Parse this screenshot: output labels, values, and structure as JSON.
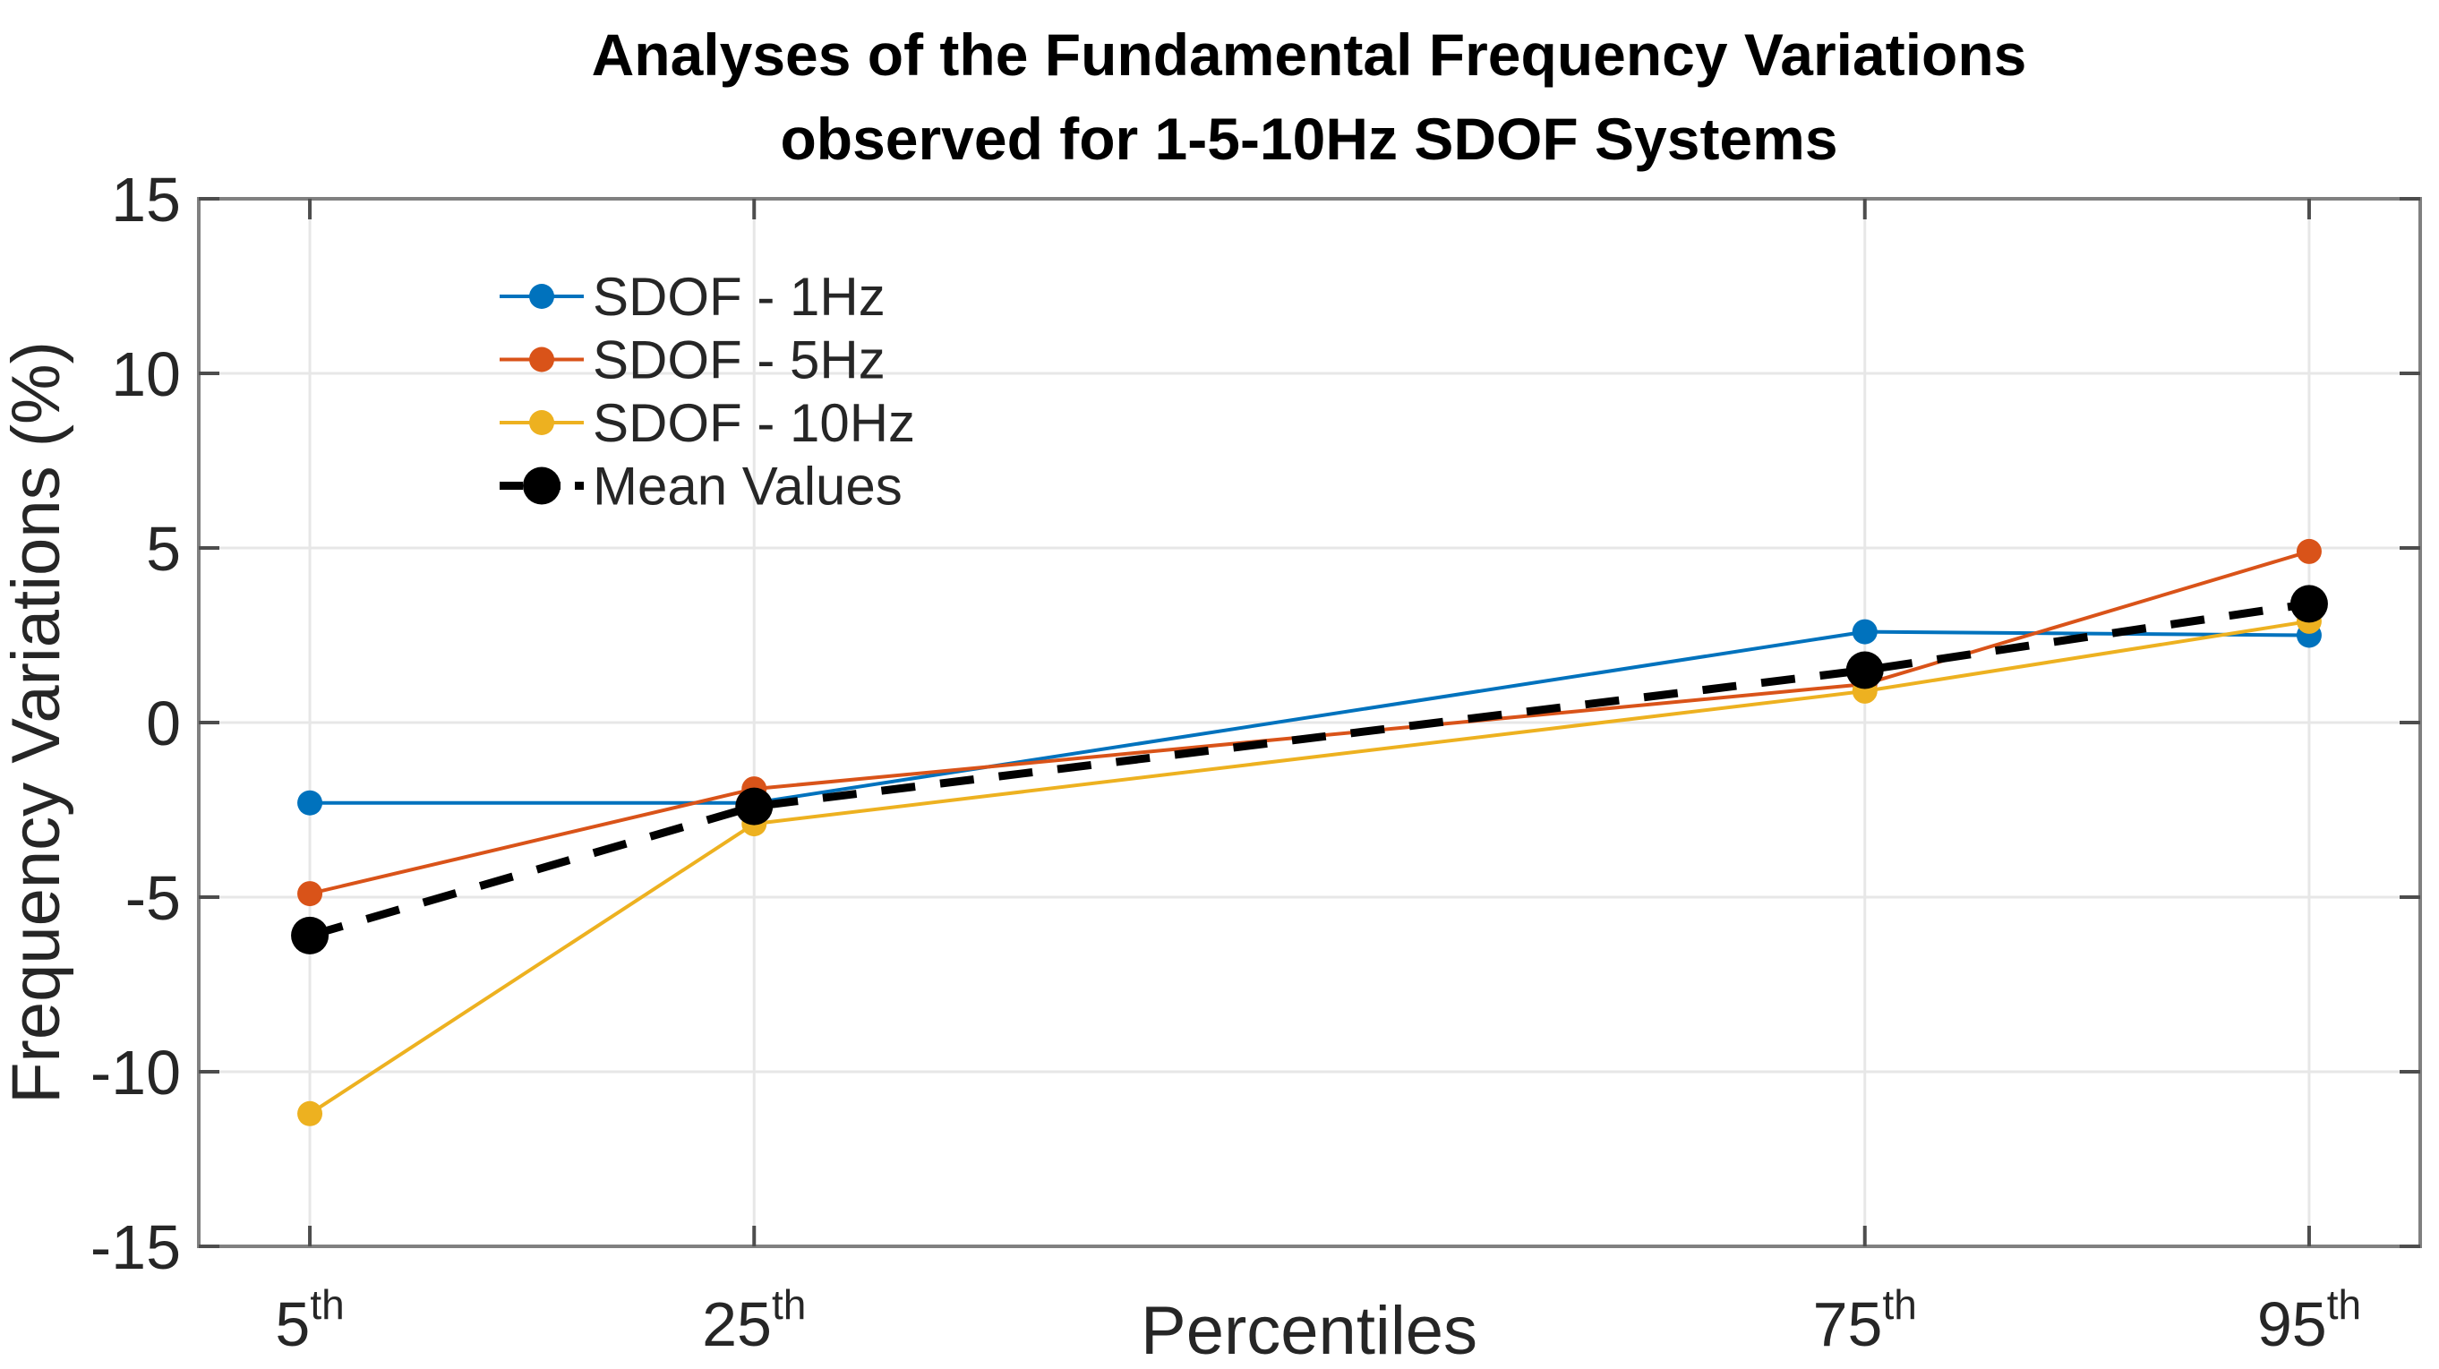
{
  "figure": {
    "title_line1": "Analyses of the Fundamental Frequency Variations",
    "title_line2": "observed for 1-5-10Hz SDOF Systems",
    "xlabel": "Percentiles",
    "ylabel": "Frequency Variations (%)"
  },
  "chart_data": {
    "type": "line",
    "title": "Analyses of the Fundamental Frequency Variations observed for 1-5-10Hz SDOF Systems",
    "xlabel": "Percentiles",
    "ylabel": "Frequency Variations (%)",
    "categories": [
      "5th",
      "25th",
      "75th",
      "95th"
    ],
    "x_axis": {
      "lim": [
        0,
        100
      ],
      "tick_positions": [
        5,
        25,
        75,
        95
      ],
      "tick_base_labels": [
        "5",
        "25",
        "75",
        "95"
      ],
      "tick_superscript": "th"
    },
    "y_axis": {
      "lim": [
        -15,
        15
      ],
      "ticks": [
        15,
        10,
        5,
        0,
        -5,
        -10,
        -15
      ],
      "tick_labels": [
        "15",
        "10",
        "5",
        "0",
        "-5",
        "-10",
        "-15"
      ]
    },
    "grid": true,
    "legend_position": "upper-left",
    "legend_boxed": false,
    "series": [
      {
        "name": "SDOF - 1Hz",
        "color": "#0072BD",
        "values": [
          -2.3,
          -2.3,
          2.6,
          2.5
        ],
        "line_style": "solid",
        "line_width": 4,
        "marker_radius": 14
      },
      {
        "name": "SDOF - 5Hz",
        "color": "#D95319",
        "values": [
          -4.9,
          -1.9,
          1.1,
          4.9
        ],
        "line_style": "solid",
        "line_width": 4,
        "marker_radius": 14
      },
      {
        "name": "SDOF - 10Hz",
        "color": "#EDB120",
        "values": [
          -11.2,
          -2.9,
          0.9,
          2.9
        ],
        "line_style": "solid",
        "line_width": 4,
        "marker_radius": 14
      },
      {
        "name": "Mean Values",
        "color": "#000000",
        "values": [
          -6.1,
          -2.4,
          1.5,
          3.4
        ],
        "line_style": "dashed",
        "line_width": 9,
        "marker_radius": 21
      }
    ],
    "colors": {
      "background": "#ffffff",
      "axis_box": "#808080",
      "grid": "#e7e7e7",
      "tick": "#4d4d4d",
      "axis_text": "#262626",
      "title_text": "#000000"
    }
  }
}
